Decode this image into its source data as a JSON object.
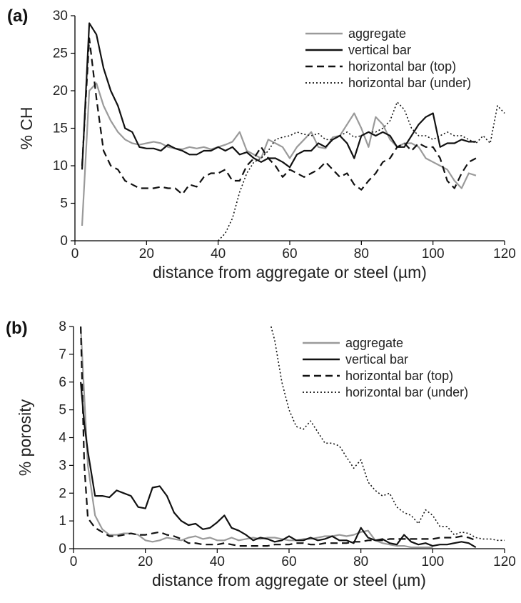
{
  "chart_data": [
    {
      "panel_label": "(a)",
      "type": "line",
      "xlabel": "distance from aggregate or steel (µm)",
      "ylabel": "% CH",
      "xlim": [
        0,
        120
      ],
      "ylim": [
        0,
        30
      ],
      "x_ticks": [
        0,
        20,
        40,
        60,
        80,
        100,
        120
      ],
      "y_ticks": [
        0,
        5,
        10,
        15,
        20,
        25,
        30
      ],
      "grid": false,
      "legend_position": "top-right",
      "series": [
        {
          "name": "aggregate",
          "color": "#9a9a9a",
          "dash": "solid",
          "x": [
            2,
            4,
            6,
            8,
            10,
            12,
            14,
            16,
            18,
            20,
            22,
            24,
            26,
            28,
            30,
            32,
            34,
            36,
            38,
            40,
            42,
            44,
            46,
            48,
            50,
            52,
            54,
            56,
            58,
            60,
            62,
            64,
            66,
            68,
            70,
            72,
            74,
            76,
            78,
            80,
            82,
            84,
            86,
            88,
            90,
            92,
            94,
            96,
            98,
            100,
            102,
            104,
            106,
            108,
            110,
            112
          ],
          "y": [
            2,
            20,
            21,
            18,
            16,
            14.5,
            13.5,
            13,
            12.8,
            13,
            13.2,
            13,
            12.5,
            12.3,
            12.2,
            12.5,
            12.3,
            12.5,
            12.2,
            12.5,
            12.8,
            13.2,
            14.5,
            12,
            11.5,
            11,
            13.5,
            13,
            12.5,
            11,
            12.5,
            13.5,
            14.5,
            12.5,
            12.3,
            13.8,
            14,
            15.5,
            17,
            15,
            12.5,
            16.5,
            15.5,
            13.5,
            12.5,
            13,
            13,
            12.5,
            11,
            10.5,
            10,
            9.5,
            8,
            7,
            9,
            8.7
          ]
        },
        {
          "name": "vertical bar",
          "color": "#111111",
          "dash": "solid",
          "x": [
            2,
            4,
            6,
            8,
            10,
            12,
            14,
            16,
            18,
            20,
            22,
            24,
            26,
            28,
            30,
            32,
            34,
            36,
            38,
            40,
            42,
            44,
            46,
            48,
            50,
            52,
            54,
            56,
            58,
            60,
            62,
            64,
            66,
            68,
            70,
            72,
            74,
            76,
            78,
            80,
            82,
            84,
            86,
            88,
            90,
            92,
            94,
            96,
            98,
            100,
            102,
            104,
            106,
            108,
            110,
            112
          ],
          "y": [
            9.5,
            29,
            27.5,
            23,
            20,
            18,
            15,
            14.5,
            12.5,
            12.3,
            12.3,
            12,
            12.8,
            12.3,
            12,
            11.5,
            11.5,
            12,
            12,
            12.5,
            12,
            12.5,
            11.5,
            11.8,
            11,
            10.5,
            11,
            11,
            10.5,
            9.8,
            11.5,
            12,
            12,
            13,
            12.5,
            13.5,
            14,
            13,
            11,
            14,
            14.5,
            14,
            14.5,
            14,
            12.5,
            12.5,
            14,
            15.5,
            16.5,
            17,
            12.5,
            13,
            13,
            13.5,
            13.2,
            13.2
          ]
        },
        {
          "name": "horizontal bar (top)",
          "color": "#111111",
          "dash": "dashed",
          "x": [
            2,
            4,
            6,
            8,
            10,
            12,
            14,
            16,
            18,
            20,
            22,
            24,
            26,
            28,
            30,
            32,
            34,
            36,
            38,
            40,
            42,
            44,
            46,
            48,
            50,
            52,
            54,
            56,
            58,
            60,
            62,
            64,
            66,
            68,
            70,
            72,
            74,
            76,
            78,
            80,
            82,
            84,
            86,
            88,
            90,
            92,
            94,
            96,
            98,
            100,
            102,
            104,
            106,
            108,
            110,
            112
          ],
          "y": [
            10,
            27,
            19,
            12,
            10,
            9.5,
            8,
            7.5,
            7,
            7,
            7,
            7.2,
            7,
            7,
            6.2,
            7.5,
            7.2,
            8.5,
            9,
            9,
            9.5,
            8,
            8,
            10,
            11,
            12.5,
            11,
            10,
            8.5,
            9.5,
            9,
            8.5,
            9,
            9.5,
            10.5,
            9.5,
            8.5,
            9,
            7.5,
            6.8,
            8,
            9,
            10.5,
            11,
            12.5,
            13,
            12,
            13,
            12.5,
            12.5,
            11,
            8,
            7,
            9,
            10.5,
            11
          ]
        },
        {
          "name": "horizontal bar (under)",
          "color": "#111111",
          "dash": "dotted",
          "x": [
            40,
            42,
            44,
            46,
            48,
            50,
            52,
            54,
            56,
            58,
            60,
            62,
            64,
            66,
            68,
            70,
            72,
            74,
            76,
            78,
            80,
            82,
            84,
            86,
            88,
            90,
            92,
            94,
            96,
            98,
            100,
            102,
            104,
            106,
            108,
            110,
            112,
            114,
            116,
            118,
            120
          ],
          "y": [
            0,
            1,
            3,
            6.5,
            9,
            10.5,
            11,
            12,
            13.5,
            13.8,
            14,
            14.5,
            14.2,
            14,
            14.3,
            13.5,
            13.5,
            14,
            14.5,
            13.8,
            14,
            14.5,
            14.5,
            15,
            16,
            18.5,
            17.5,
            15,
            14,
            14,
            13.5,
            14,
            14.5,
            14,
            14,
            13.5,
            13,
            14,
            13,
            18,
            17
          ]
        }
      ]
    },
    {
      "panel_label": "(b)",
      "type": "line",
      "xlabel": "distance from aggregate or steel (µm)",
      "ylabel": "% porosity",
      "xlim": [
        0,
        120
      ],
      "ylim": [
        0,
        8
      ],
      "x_ticks": [
        0,
        20,
        40,
        60,
        80,
        100,
        120
      ],
      "y_ticks": [
        0,
        1,
        2,
        3,
        4,
        5,
        6,
        7,
        8
      ],
      "grid": false,
      "legend_position": "top-right",
      "series": [
        {
          "name": "aggregate",
          "color": "#9a9a9a",
          "dash": "solid",
          "x": [
            2,
            3,
            4,
            6,
            8,
            10,
            12,
            14,
            16,
            18,
            20,
            22,
            24,
            26,
            28,
            30,
            32,
            34,
            36,
            38,
            40,
            42,
            44,
            46,
            48,
            50,
            52,
            54,
            56,
            58,
            60,
            62,
            64,
            66,
            68,
            70,
            72,
            74,
            76,
            78,
            80,
            82,
            84,
            86,
            88,
            90,
            92,
            94,
            96,
            98,
            100
          ],
          "y": [
            8,
            5.5,
            3,
            1.2,
            0.7,
            0.5,
            0.5,
            0.55,
            0.55,
            0.5,
            0.3,
            0.25,
            0.3,
            0.4,
            0.35,
            0.3,
            0.4,
            0.45,
            0.35,
            0.4,
            0.3,
            0.3,
            0.4,
            0.3,
            0.35,
            0.4,
            0.35,
            0.4,
            0.4,
            0.35,
            0.3,
            0.3,
            0.35,
            0.35,
            0.4,
            0.45,
            0.45,
            0.5,
            0.45,
            0.5,
            0.6,
            0.65,
            0.3,
            0.2,
            0.15,
            0.1,
            0.1,
            0.05,
            0.05,
            0.05,
            0.05
          ]
        },
        {
          "name": "vertical bar",
          "color": "#111111",
          "dash": "solid",
          "x": [
            2,
            3,
            4,
            6,
            8,
            10,
            12,
            14,
            16,
            18,
            20,
            22,
            24,
            26,
            28,
            30,
            32,
            34,
            36,
            38,
            40,
            42,
            44,
            46,
            48,
            50,
            52,
            54,
            56,
            58,
            60,
            62,
            64,
            66,
            68,
            70,
            72,
            74,
            76,
            78,
            80,
            82,
            84,
            86,
            88,
            90,
            92,
            94,
            96,
            98,
            100,
            102,
            104,
            106,
            108,
            110,
            112
          ],
          "y": [
            6,
            4.5,
            3.5,
            1.9,
            1.9,
            1.85,
            2.1,
            2,
            1.9,
            1.5,
            1.45,
            2.2,
            2.25,
            1.9,
            1.3,
            1,
            0.85,
            0.9,
            0.7,
            0.75,
            0.95,
            1.2,
            0.75,
            0.65,
            0.5,
            0.3,
            0.4,
            0.35,
            0.25,
            0.3,
            0.45,
            0.3,
            0.3,
            0.4,
            0.3,
            0.35,
            0.45,
            0.3,
            0.3,
            0.2,
            0.75,
            0.4,
            0.3,
            0.35,
            0.2,
            0.15,
            0.5,
            0.25,
            0.15,
            0.2,
            0.1,
            0.15,
            0.15,
            0.2,
            0.25,
            0.2,
            0.05
          ]
        },
        {
          "name": "horizontal bar (top)",
          "color": "#111111",
          "dash": "dashed",
          "x": [
            2,
            3,
            4,
            6,
            8,
            10,
            12,
            14,
            16,
            18,
            20,
            22,
            24,
            26,
            28,
            30,
            32,
            34,
            36,
            38,
            40,
            42,
            44,
            46,
            48,
            50,
            52,
            54,
            56,
            58,
            60,
            62,
            64,
            66,
            68,
            70,
            72,
            74,
            76,
            78,
            80,
            82,
            84,
            86,
            88,
            90,
            92,
            94,
            96,
            98,
            100,
            102,
            104,
            106,
            108,
            110,
            112
          ],
          "y": [
            8,
            3,
            1.1,
            0.75,
            0.6,
            0.45,
            0.45,
            0.5,
            0.55,
            0.5,
            0.5,
            0.55,
            0.6,
            0.5,
            0.45,
            0.35,
            0.2,
            0.2,
            0.15,
            0.15,
            0.15,
            0.2,
            0.15,
            0.1,
            0.1,
            0.1,
            0.1,
            0.1,
            0.15,
            0.15,
            0.15,
            0.2,
            0.2,
            0.15,
            0.15,
            0.2,
            0.2,
            0.2,
            0.2,
            0.25,
            0.25,
            0.3,
            0.3,
            0.3,
            0.35,
            0.35,
            0.35,
            0.35,
            0.35,
            0.35,
            0.35,
            0.4,
            0.4,
            0.4,
            0.45,
            0.4,
            0.3
          ]
        },
        {
          "name": "horizontal bar (under)",
          "color": "#111111",
          "dash": "dotted",
          "x": [
            55,
            56,
            58,
            60,
            62,
            64,
            66,
            68,
            70,
            72,
            74,
            76,
            78,
            80,
            82,
            84,
            86,
            88,
            90,
            92,
            94,
            96,
            98,
            100,
            102,
            104,
            106,
            108,
            110,
            112,
            114,
            116,
            118,
            120
          ],
          "y": [
            8,
            7.5,
            6,
            5,
            4.4,
            4.3,
            4.6,
            4.2,
            3.8,
            3.8,
            3.7,
            3.3,
            2.9,
            3.2,
            2.4,
            2.1,
            1.9,
            2,
            1.5,
            1.3,
            1.2,
            0.9,
            1.4,
            1.2,
            0.8,
            0.8,
            0.5,
            0.6,
            0.55,
            0.4,
            0.35,
            0.35,
            0.3,
            0.3
          ]
        }
      ]
    }
  ]
}
